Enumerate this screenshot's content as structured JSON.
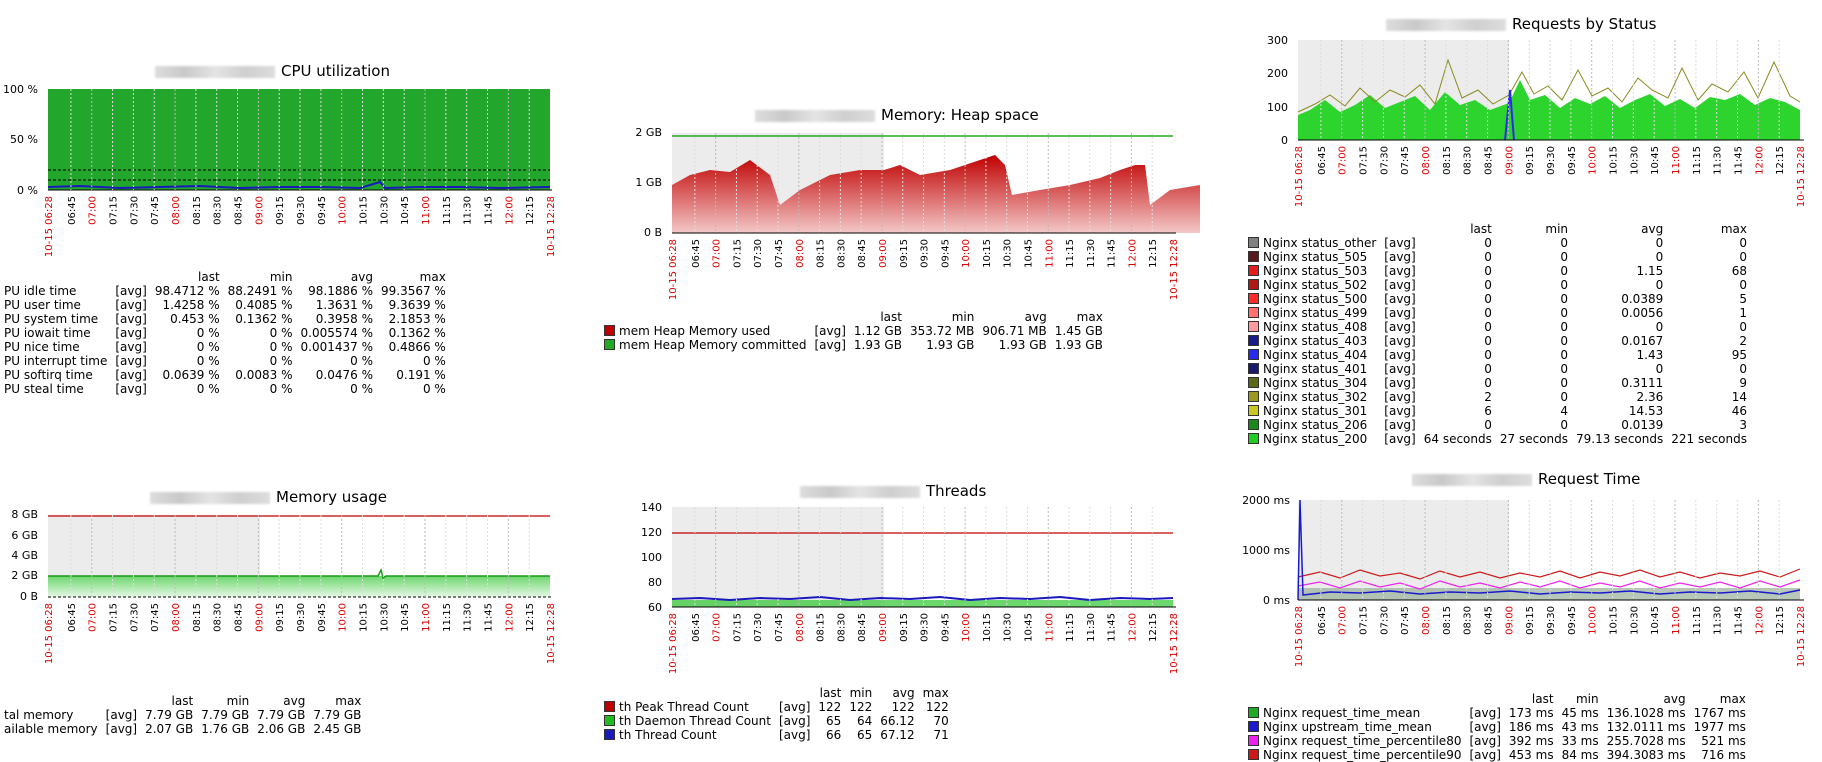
{
  "graphs": {
    "cpu": {
      "title": "CPU utilization",
      "y_ticks": [
        "100 %",
        "50 %",
        "0 %"
      ],
      "legend_headers": [
        "last",
        "min",
        "avg",
        "max"
      ],
      "legend": [
        {
          "name": "PU idle time",
          "agg": "[avg]",
          "last": "98.4712 %",
          "min": "88.2491 %",
          "avg": "98.1886 %",
          "max": "99.3567 %"
        },
        {
          "name": "PU user time",
          "agg": "[avg]",
          "last": "1.4258 %",
          "min": "0.4085 %",
          "avg": "1.3631 %",
          "max": "9.3639 %"
        },
        {
          "name": "PU system time",
          "agg": "[avg]",
          "last": "0.453 %",
          "min": "0.1362 %",
          "avg": "0.3958 %",
          "max": "2.1853 %"
        },
        {
          "name": "PU iowait time",
          "agg": "[avg]",
          "last": "0 %",
          "min": "0 %",
          "avg": "0.005574 %",
          "max": "0.1362 %"
        },
        {
          "name": "PU nice time",
          "agg": "[avg]",
          "last": "0 %",
          "min": "0 %",
          "avg": "0.001437 %",
          "max": "0.4866 %"
        },
        {
          "name": "PU interrupt time",
          "agg": "[avg]",
          "last": "0 %",
          "min": "0 %",
          "avg": "0 %",
          "max": "0 %"
        },
        {
          "name": "PU softirq time",
          "agg": "[avg]",
          "last": "0.0639 %",
          "min": "0.0083 %",
          "avg": "0.0476 %",
          "max": "0.191 %"
        },
        {
          "name": "PU steal time",
          "agg": "[avg]",
          "last": "0 %",
          "min": "0 %",
          "avg": "0 %",
          "max": "0 %"
        }
      ]
    },
    "heap": {
      "title": "Memory: Heap space",
      "y_ticks": [
        "2 GB",
        "1 GB",
        "0 B"
      ],
      "legend_headers": [
        "last",
        "min",
        "avg",
        "max"
      ],
      "legend": [
        {
          "name": "mem Heap Memory used",
          "color": "#c00000",
          "agg": "[avg]",
          "last": "1.12 GB",
          "min": "353.72 MB",
          "avg": "906.71 MB",
          "max": "1.45 GB"
        },
        {
          "name": "mem Heap Memory committed",
          "color": "#22aa22",
          "agg": "[avg]",
          "last": "1.93 GB",
          "min": "1.93 GB",
          "avg": "1.93 GB",
          "max": "1.93 GB"
        }
      ]
    },
    "requests": {
      "title": "Requests by Status",
      "y_ticks": [
        "300",
        "200",
        "100",
        "0"
      ],
      "legend_headers": [
        "last",
        "min",
        "avg",
        "max"
      ],
      "legend": [
        {
          "name": "Nginx status_other",
          "color": "#808080",
          "agg": "[avg]",
          "last": "0",
          "min": "0",
          "avg": "0",
          "max": "0"
        },
        {
          "name": "Nginx status_505",
          "color": "#5a1a1a",
          "agg": "[avg]",
          "last": "0",
          "min": "0",
          "avg": "0",
          "max": "0"
        },
        {
          "name": "Nginx status_503",
          "color": "#e02020",
          "agg": "[avg]",
          "last": "0",
          "min": "0",
          "avg": "1.15",
          "max": "68"
        },
        {
          "name": "Nginx status_502",
          "color": "#b01818",
          "agg": "[avg]",
          "last": "0",
          "min": "0",
          "avg": "0",
          "max": "0"
        },
        {
          "name": "Nginx status_500",
          "color": "#ff2a2a",
          "agg": "[avg]",
          "last": "0",
          "min": "0",
          "avg": "0.0389",
          "max": "5"
        },
        {
          "name": "Nginx status_499",
          "color": "#ff7070",
          "agg": "[avg]",
          "last": "0",
          "min": "0",
          "avg": "0.0056",
          "max": "1"
        },
        {
          "name": "Nginx status_408",
          "color": "#ff9a9a",
          "agg": "[avg]",
          "last": "0",
          "min": "0",
          "avg": "0",
          "max": "0"
        },
        {
          "name": "Nginx status_403",
          "color": "#1a1a8a",
          "agg": "[avg]",
          "last": "0",
          "min": "0",
          "avg": "0.0167",
          "max": "2"
        },
        {
          "name": "Nginx status_404",
          "color": "#2a2aee",
          "agg": "[avg]",
          "last": "0",
          "min": "0",
          "avg": "1.43",
          "max": "95"
        },
        {
          "name": "Nginx status_401",
          "color": "#1a1a6a",
          "agg": "[avg]",
          "last": "0",
          "min": "0",
          "avg": "0",
          "max": "0"
        },
        {
          "name": "Nginx status_304",
          "color": "#5a6a1a",
          "agg": "[avg]",
          "last": "0",
          "min": "0",
          "avg": "0.3111",
          "max": "9"
        },
        {
          "name": "Nginx status_302",
          "color": "#9a9a20",
          "agg": "[avg]",
          "last": "2",
          "min": "0",
          "avg": "2.36",
          "max": "14"
        },
        {
          "name": "Nginx status_301",
          "color": "#c8c820",
          "agg": "[avg]",
          "last": "6",
          "min": "4",
          "avg": "14.53",
          "max": "46"
        },
        {
          "name": "Nginx status_206",
          "color": "#1a8a1a",
          "agg": "[avg]",
          "last": "0",
          "min": "0",
          "avg": "0.0139",
          "max": "3"
        },
        {
          "name": "Nginx status_200",
          "color": "#22cc22",
          "agg": "[avg]",
          "last": "64 seconds",
          "min": "27 seconds",
          "avg": "79.13 seconds",
          "max": "221 seconds"
        }
      ]
    },
    "memusage": {
      "title": "Memory usage",
      "y_ticks": [
        "8 GB",
        "6 GB",
        "4 GB",
        "2 GB",
        "0 B"
      ],
      "legend_headers": [
        "last",
        "min",
        "avg",
        "max"
      ],
      "legend": [
        {
          "name": "tal memory",
          "agg": "[avg]",
          "last": "7.79 GB",
          "min": "7.79 GB",
          "avg": "7.79 GB",
          "max": "7.79 GB"
        },
        {
          "name": "ailable memory",
          "agg": "[avg]",
          "last": "2.07 GB",
          "min": "1.76 GB",
          "avg": "2.06 GB",
          "max": "2.45 GB"
        }
      ]
    },
    "threads": {
      "title": "Threads",
      "y_ticks": [
        "140",
        "120",
        "100",
        "80",
        "60"
      ],
      "legend_headers": [
        "last",
        "min",
        "avg",
        "max"
      ],
      "legend": [
        {
          "name": "th Peak Thread Count",
          "color": "#c00000",
          "agg": "[avg]",
          "last": "122",
          "min": "122",
          "avg": "122",
          "max": "122"
        },
        {
          "name": "th Daemon Thread Count",
          "color": "#22bb22",
          "agg": "[avg]",
          "last": "65",
          "min": "64",
          "avg": "66.12",
          "max": "70"
        },
        {
          "name": "th Thread Count",
          "color": "#1a1abb",
          "agg": "[avg]",
          "last": "66",
          "min": "65",
          "avg": "67.12",
          "max": "71"
        }
      ]
    },
    "reqtime": {
      "title": "Request Time",
      "y_ticks": [
        "2000 ms",
        "1000 ms",
        "0 ms"
      ],
      "legend_headers": [
        "last",
        "min",
        "avg",
        "max"
      ],
      "legend": [
        {
          "name": "Nginx request_time_mean",
          "color": "#22aa22",
          "agg": "[avg]",
          "last": "173 ms",
          "min": "45 ms",
          "avg": "136.1028 ms",
          "max": "1767 ms"
        },
        {
          "name": "Nginx upstream_time_mean",
          "color": "#1a1acc",
          "agg": "[avg]",
          "last": "186 ms",
          "min": "43 ms",
          "avg": "132.0111 ms",
          "max": "1977 ms"
        },
        {
          "name": "Nginx request_time_percentile80",
          "color": "#ee22ee",
          "agg": "[avg]",
          "last": "392 ms",
          "min": "33 ms",
          "avg": "255.7028 ms",
          "max": "521 ms"
        },
        {
          "name": "Nginx request_time_percentile90",
          "color": "#cc1a1a",
          "agg": "[avg]",
          "last": "453 ms",
          "min": "84 ms",
          "avg": "394.3083 ms",
          "max": "716 ms"
        }
      ]
    }
  },
  "time_axis": {
    "start": "10-15 06:28",
    "end": "10-15 12:28",
    "ticks": [
      "06:45",
      "07:00",
      "07:15",
      "07:30",
      "07:45",
      "08:00",
      "08:15",
      "08:30",
      "08:45",
      "09:00",
      "09:15",
      "09:30",
      "09:45",
      "10:00",
      "10:15",
      "10:30",
      "10:45",
      "11:00",
      "11:15",
      "11:30",
      "11:45",
      "12:00",
      "12:15"
    ],
    "hour_ticks": [
      "07:00",
      "08:00",
      "09:00",
      "10:00",
      "11:00",
      "12:00"
    ],
    "colors": {
      "hour": "#dd0000",
      "normal": "#000000"
    }
  }
}
